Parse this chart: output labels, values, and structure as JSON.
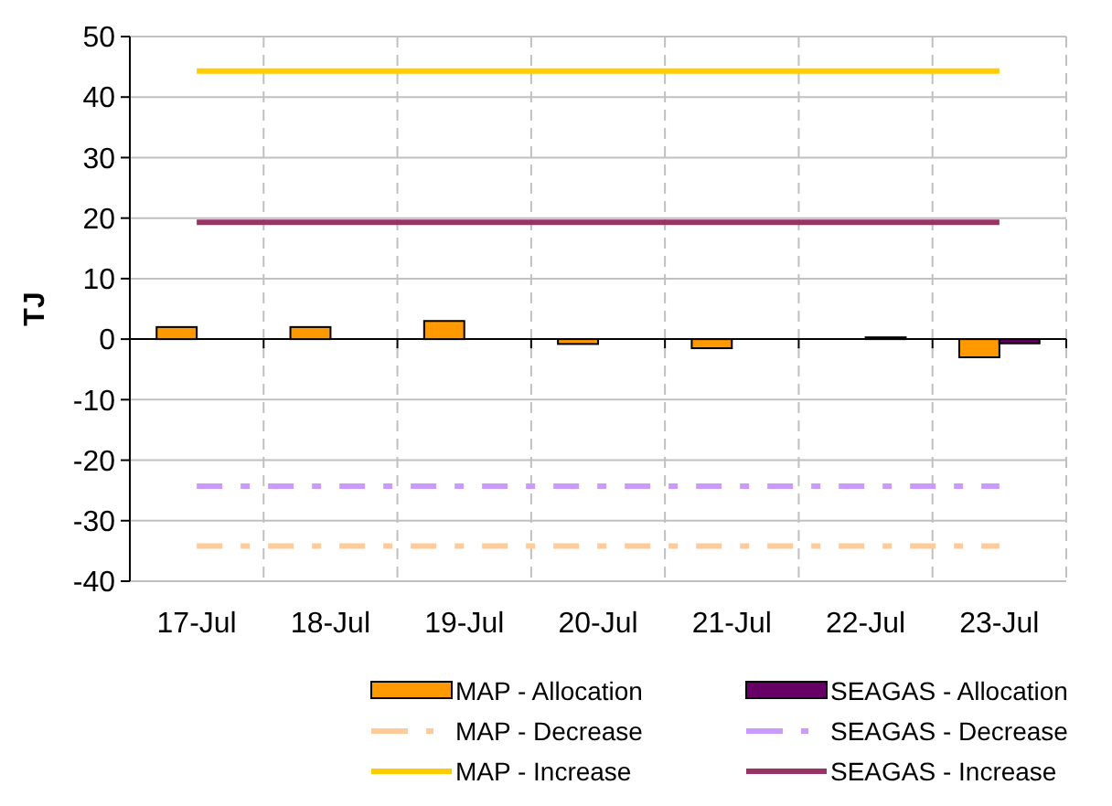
{
  "chart_data": {
    "type": "bar",
    "ylabel": "TJ",
    "categories": [
      "17-Jul",
      "18-Jul",
      "19-Jul",
      "20-Jul",
      "21-Jul",
      "22-Jul",
      "23-Jul"
    ],
    "series": [
      {
        "name": "MAP - Allocation",
        "color": "#ff9900",
        "values": [
          2,
          2,
          3,
          -0.8,
          -1.5,
          0,
          -3
        ]
      },
      {
        "name": "SEAGAS - Allocation",
        "color": "#660066",
        "values": [
          0,
          0,
          0,
          0,
          0,
          0.3,
          -0.7
        ]
      },
      {
        "name": "MAP - Decrease",
        "type": "line",
        "color": "#ffcc99",
        "line_style": "dashed",
        "values": [
          -34.2,
          -34.2,
          -34.2,
          -34.2,
          -34.2,
          -34.2,
          -34.2
        ]
      },
      {
        "name": "SEAGAS - Decrease",
        "type": "line",
        "color": "#cc99ff",
        "line_style": "dashed",
        "values": [
          -24.3,
          -24.3,
          -24.3,
          -24.3,
          -24.3,
          -24.3,
          -24.3
        ]
      },
      {
        "name": "MAP - Increase",
        "type": "line",
        "color": "#ffcc00",
        "line_style": "solid",
        "values": [
          44.3,
          44.3,
          44.3,
          44.3,
          44.3,
          44.3,
          44.3
        ]
      },
      {
        "name": "SEAGAS - Increase",
        "type": "line",
        "color": "#993366",
        "line_style": "solid",
        "values": [
          19.3,
          19.3,
          19.3,
          19.3,
          19.3,
          19.3,
          19.3
        ]
      }
    ],
    "ylim": [
      -40,
      50
    ],
    "yticks": [
      -40,
      -30,
      -20,
      -10,
      0,
      10,
      20,
      30,
      40,
      50
    ],
    "grid": true,
    "legend": "bottom",
    "marker": "none"
  }
}
